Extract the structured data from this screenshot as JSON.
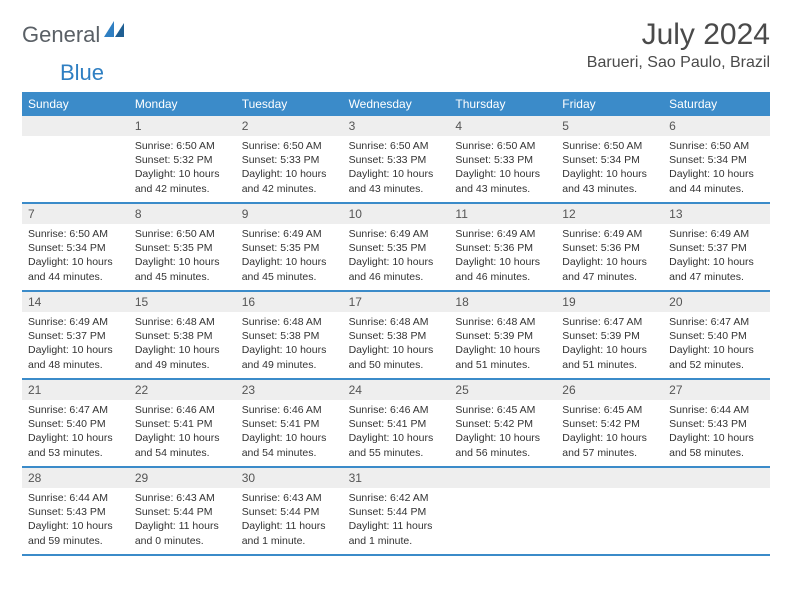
{
  "logo": {
    "text_main": "General",
    "text_blue": "Blue"
  },
  "title": "July 2024",
  "location": "Barueri, Sao Paulo, Brazil",
  "colors": {
    "header_bg": "#3b8bc9",
    "header_fg": "#ffffff",
    "daynum_bg": "#eeeeee",
    "border": "#3b8bc9",
    "logo_gray": "#5a6066",
    "logo_blue": "#2f7fc2"
  },
  "day_names": [
    "Sunday",
    "Monday",
    "Tuesday",
    "Wednesday",
    "Thursday",
    "Friday",
    "Saturday"
  ],
  "weeks": [
    [
      {
        "num": "",
        "sunrise": "",
        "sunset": "",
        "daylight": ""
      },
      {
        "num": "1",
        "sunrise": "Sunrise: 6:50 AM",
        "sunset": "Sunset: 5:32 PM",
        "daylight": "Daylight: 10 hours and 42 minutes."
      },
      {
        "num": "2",
        "sunrise": "Sunrise: 6:50 AM",
        "sunset": "Sunset: 5:33 PM",
        "daylight": "Daylight: 10 hours and 42 minutes."
      },
      {
        "num": "3",
        "sunrise": "Sunrise: 6:50 AM",
        "sunset": "Sunset: 5:33 PM",
        "daylight": "Daylight: 10 hours and 43 minutes."
      },
      {
        "num": "4",
        "sunrise": "Sunrise: 6:50 AM",
        "sunset": "Sunset: 5:33 PM",
        "daylight": "Daylight: 10 hours and 43 minutes."
      },
      {
        "num": "5",
        "sunrise": "Sunrise: 6:50 AM",
        "sunset": "Sunset: 5:34 PM",
        "daylight": "Daylight: 10 hours and 43 minutes."
      },
      {
        "num": "6",
        "sunrise": "Sunrise: 6:50 AM",
        "sunset": "Sunset: 5:34 PM",
        "daylight": "Daylight: 10 hours and 44 minutes."
      }
    ],
    [
      {
        "num": "7",
        "sunrise": "Sunrise: 6:50 AM",
        "sunset": "Sunset: 5:34 PM",
        "daylight": "Daylight: 10 hours and 44 minutes."
      },
      {
        "num": "8",
        "sunrise": "Sunrise: 6:50 AM",
        "sunset": "Sunset: 5:35 PM",
        "daylight": "Daylight: 10 hours and 45 minutes."
      },
      {
        "num": "9",
        "sunrise": "Sunrise: 6:49 AM",
        "sunset": "Sunset: 5:35 PM",
        "daylight": "Daylight: 10 hours and 45 minutes."
      },
      {
        "num": "10",
        "sunrise": "Sunrise: 6:49 AM",
        "sunset": "Sunset: 5:35 PM",
        "daylight": "Daylight: 10 hours and 46 minutes."
      },
      {
        "num": "11",
        "sunrise": "Sunrise: 6:49 AM",
        "sunset": "Sunset: 5:36 PM",
        "daylight": "Daylight: 10 hours and 46 minutes."
      },
      {
        "num": "12",
        "sunrise": "Sunrise: 6:49 AM",
        "sunset": "Sunset: 5:36 PM",
        "daylight": "Daylight: 10 hours and 47 minutes."
      },
      {
        "num": "13",
        "sunrise": "Sunrise: 6:49 AM",
        "sunset": "Sunset: 5:37 PM",
        "daylight": "Daylight: 10 hours and 47 minutes."
      }
    ],
    [
      {
        "num": "14",
        "sunrise": "Sunrise: 6:49 AM",
        "sunset": "Sunset: 5:37 PM",
        "daylight": "Daylight: 10 hours and 48 minutes."
      },
      {
        "num": "15",
        "sunrise": "Sunrise: 6:48 AM",
        "sunset": "Sunset: 5:38 PM",
        "daylight": "Daylight: 10 hours and 49 minutes."
      },
      {
        "num": "16",
        "sunrise": "Sunrise: 6:48 AM",
        "sunset": "Sunset: 5:38 PM",
        "daylight": "Daylight: 10 hours and 49 minutes."
      },
      {
        "num": "17",
        "sunrise": "Sunrise: 6:48 AM",
        "sunset": "Sunset: 5:38 PM",
        "daylight": "Daylight: 10 hours and 50 minutes."
      },
      {
        "num": "18",
        "sunrise": "Sunrise: 6:48 AM",
        "sunset": "Sunset: 5:39 PM",
        "daylight": "Daylight: 10 hours and 51 minutes."
      },
      {
        "num": "19",
        "sunrise": "Sunrise: 6:47 AM",
        "sunset": "Sunset: 5:39 PM",
        "daylight": "Daylight: 10 hours and 51 minutes."
      },
      {
        "num": "20",
        "sunrise": "Sunrise: 6:47 AM",
        "sunset": "Sunset: 5:40 PM",
        "daylight": "Daylight: 10 hours and 52 minutes."
      }
    ],
    [
      {
        "num": "21",
        "sunrise": "Sunrise: 6:47 AM",
        "sunset": "Sunset: 5:40 PM",
        "daylight": "Daylight: 10 hours and 53 minutes."
      },
      {
        "num": "22",
        "sunrise": "Sunrise: 6:46 AM",
        "sunset": "Sunset: 5:41 PM",
        "daylight": "Daylight: 10 hours and 54 minutes."
      },
      {
        "num": "23",
        "sunrise": "Sunrise: 6:46 AM",
        "sunset": "Sunset: 5:41 PM",
        "daylight": "Daylight: 10 hours and 54 minutes."
      },
      {
        "num": "24",
        "sunrise": "Sunrise: 6:46 AM",
        "sunset": "Sunset: 5:41 PM",
        "daylight": "Daylight: 10 hours and 55 minutes."
      },
      {
        "num": "25",
        "sunrise": "Sunrise: 6:45 AM",
        "sunset": "Sunset: 5:42 PM",
        "daylight": "Daylight: 10 hours and 56 minutes."
      },
      {
        "num": "26",
        "sunrise": "Sunrise: 6:45 AM",
        "sunset": "Sunset: 5:42 PM",
        "daylight": "Daylight: 10 hours and 57 minutes."
      },
      {
        "num": "27",
        "sunrise": "Sunrise: 6:44 AM",
        "sunset": "Sunset: 5:43 PM",
        "daylight": "Daylight: 10 hours and 58 minutes."
      }
    ],
    [
      {
        "num": "28",
        "sunrise": "Sunrise: 6:44 AM",
        "sunset": "Sunset: 5:43 PM",
        "daylight": "Daylight: 10 hours and 59 minutes."
      },
      {
        "num": "29",
        "sunrise": "Sunrise: 6:43 AM",
        "sunset": "Sunset: 5:44 PM",
        "daylight": "Daylight: 11 hours and 0 minutes."
      },
      {
        "num": "30",
        "sunrise": "Sunrise: 6:43 AM",
        "sunset": "Sunset: 5:44 PM",
        "daylight": "Daylight: 11 hours and 1 minute."
      },
      {
        "num": "31",
        "sunrise": "Sunrise: 6:42 AM",
        "sunset": "Sunset: 5:44 PM",
        "daylight": "Daylight: 11 hours and 1 minute."
      },
      {
        "num": "",
        "sunrise": "",
        "sunset": "",
        "daylight": ""
      },
      {
        "num": "",
        "sunrise": "",
        "sunset": "",
        "daylight": ""
      },
      {
        "num": "",
        "sunrise": "",
        "sunset": "",
        "daylight": ""
      }
    ]
  ]
}
